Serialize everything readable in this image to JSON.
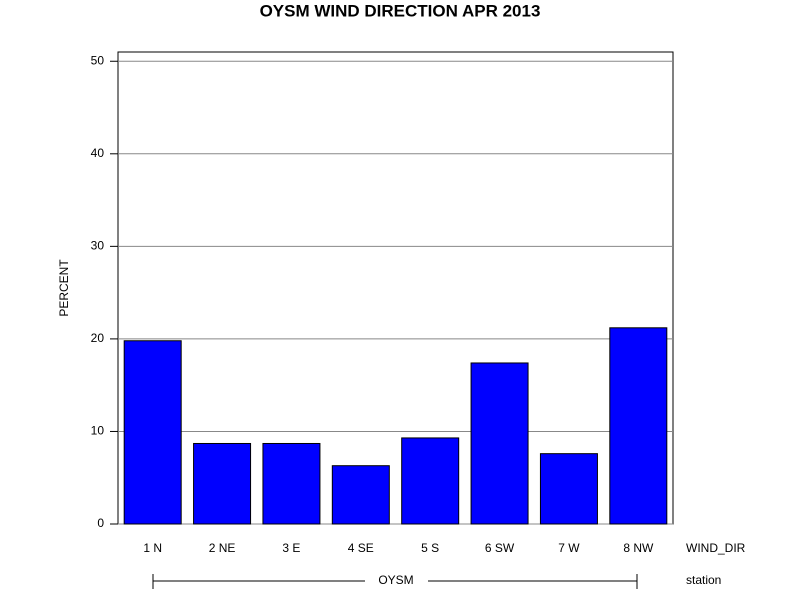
{
  "chart_data": {
    "type": "bar",
    "title": "OYSM WIND DIRECTION APR 2013",
    "y_label": "PERCENT",
    "x_label": "WIND_DIR",
    "group_label": "station",
    "group": "OYSM",
    "categories": [
      "1 N",
      "2 NE",
      "3 E",
      "4 SE",
      "5 S",
      "6 SW",
      "7 W",
      "8 NW"
    ],
    "values": [
      19.8,
      8.7,
      8.7,
      6.3,
      9.3,
      17.4,
      7.6,
      21.2
    ],
    "color": "#0000ff",
    "ylim": [
      0,
      51
    ],
    "yticks": [
      0,
      10,
      20,
      30,
      40,
      50
    ],
    "grid": true
  }
}
